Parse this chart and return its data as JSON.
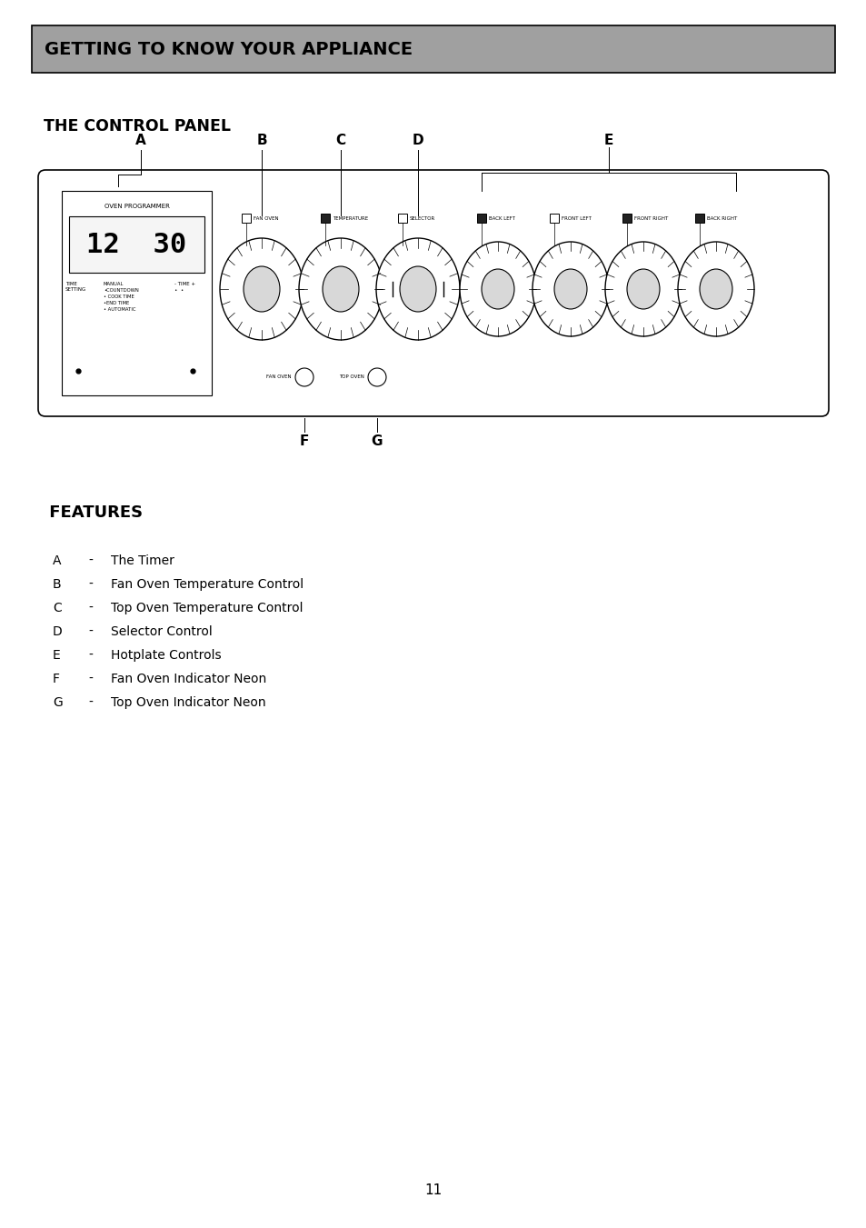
{
  "page_bg": "#ffffff",
  "header_bg": "#a0a0a0",
  "header_text": "GETTING TO KNOW YOUR APPLIANCE",
  "header_text_color": "#000000",
  "section1_title": "THE CONTROL PANEL",
  "section2_title": " FEATURES",
  "features": [
    [
      "A",
      "The Timer"
    ],
    [
      "B",
      "Fan Oven Temperature Control"
    ],
    [
      "C",
      "Top Oven Temperature Control"
    ],
    [
      "D",
      "Selector Control"
    ],
    [
      "E",
      "Hotplate Controls"
    ],
    [
      "F",
      "Fan Oven Indicator Neon"
    ],
    [
      "G",
      "Top Oven Indicator Neon"
    ]
  ],
  "page_number": "11"
}
